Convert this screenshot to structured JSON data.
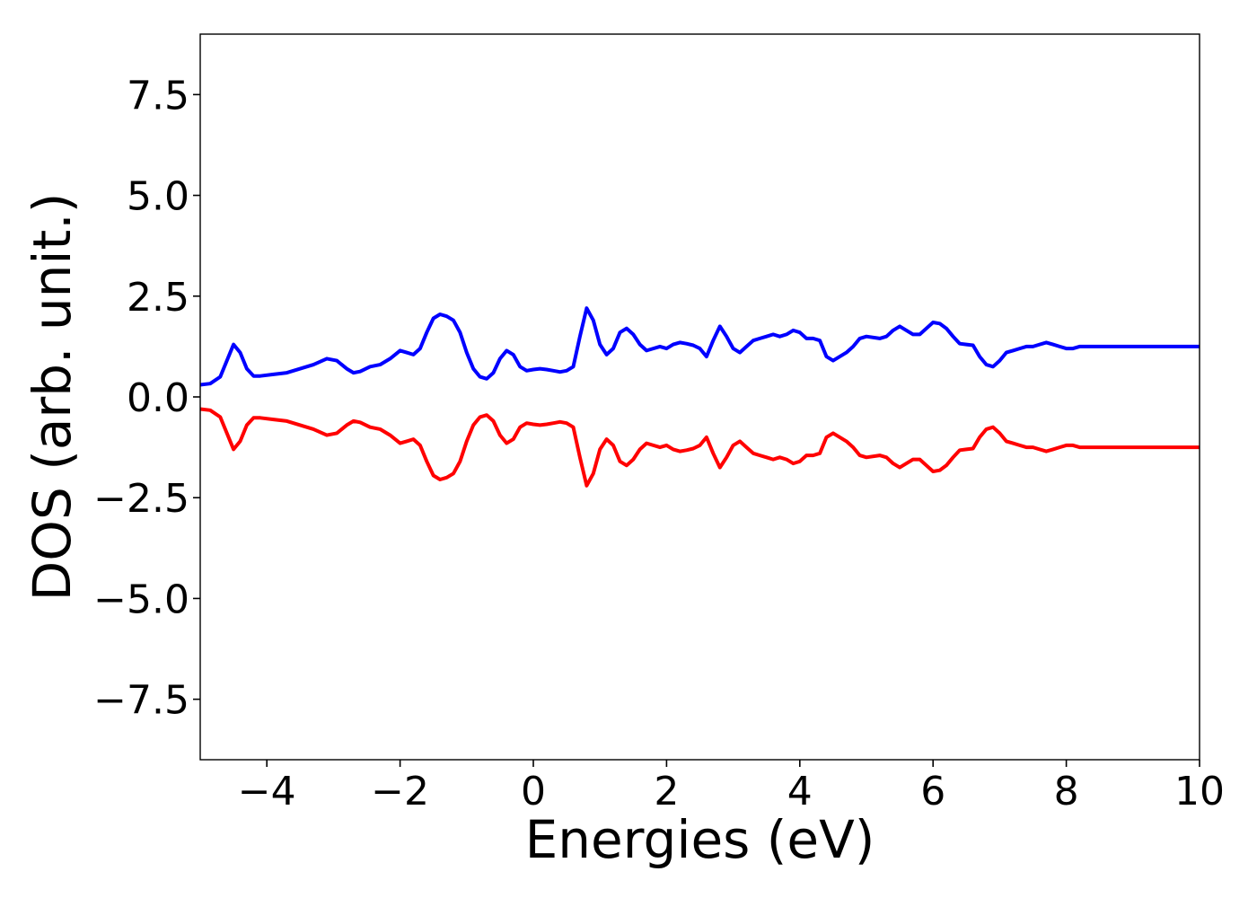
{
  "chart_data": {
    "type": "line",
    "xlabel": "Energies (eV)",
    "ylabel": "DOS (arb. unit.)",
    "xlim": [
      -5,
      10
    ],
    "ylim": [
      -9.0,
      9.0
    ],
    "grid": false,
    "x_ticks": [
      -4,
      -2,
      0,
      2,
      4,
      6,
      8,
      10
    ],
    "x_tick_labels": [
      "−4",
      "−2",
      "0",
      "2",
      "4",
      "6",
      "8",
      "10"
    ],
    "y_ticks": [
      7.5,
      5.0,
      2.5,
      0.0,
      -2.5,
      -5.0,
      -7.5
    ],
    "y_tick_labels": [
      "7.5",
      "5.0",
      "2.5",
      "0.0",
      "−2.5",
      "−5.0",
      "−7.5"
    ],
    "series": [
      {
        "color": "#0000ff",
        "x": [
          -5.0,
          -4.85,
          -4.7,
          -4.6,
          -4.5,
          -4.4,
          -4.3,
          -4.2,
          -4.1,
          -3.9,
          -3.7,
          -3.5,
          -3.3,
          -3.1,
          -2.95,
          -2.8,
          -2.7,
          -2.6,
          -2.45,
          -2.3,
          -2.15,
          -2.0,
          -1.9,
          -1.8,
          -1.7,
          -1.6,
          -1.5,
          -1.4,
          -1.3,
          -1.2,
          -1.1,
          -1.0,
          -0.9,
          -0.8,
          -0.7,
          -0.6,
          -0.5,
          -0.4,
          -0.3,
          -0.2,
          -0.1,
          0.0,
          0.1,
          0.2,
          0.3,
          0.4,
          0.5,
          0.6,
          0.7,
          0.8,
          0.9,
          1.0,
          1.1,
          1.2,
          1.3,
          1.4,
          1.5,
          1.6,
          1.7,
          1.8,
          1.9,
          2.0,
          2.1,
          2.2,
          2.3,
          2.4,
          2.5,
          2.6,
          2.7,
          2.8,
          2.9,
          3.0,
          3.1,
          3.2,
          3.3,
          3.4,
          3.5,
          3.6,
          3.7,
          3.8,
          3.9,
          4.0,
          4.1,
          4.2,
          4.3,
          4.4,
          4.5,
          4.6,
          4.7,
          4.8,
          4.9,
          5.0,
          5.2,
          5.3,
          5.4,
          5.5,
          5.6,
          5.7,
          5.8,
          5.9,
          6.0,
          6.1,
          6.2,
          6.3,
          6.4,
          6.5,
          6.6,
          6.7,
          6.8,
          6.9,
          7.0,
          7.1,
          7.2,
          7.3,
          7.4,
          7.5,
          7.6,
          7.7,
          7.8,
          7.9,
          8.0,
          8.1,
          8.2,
          8.3,
          8.4,
          8.5,
          8.6,
          8.7,
          8.8,
          8.9,
          9.0,
          9.1,
          9.2,
          9.3,
          9.4,
          9.5,
          9.6,
          9.7,
          9.8,
          9.9,
          10.0
        ],
        "values": [
          0.3,
          0.33,
          0.5,
          0.9,
          1.3,
          1.1,
          0.7,
          0.52,
          0.52,
          0.56,
          0.6,
          0.7,
          0.8,
          0.95,
          0.9,
          0.7,
          0.6,
          0.63,
          0.75,
          0.8,
          0.95,
          1.15,
          1.1,
          1.05,
          1.2,
          1.6,
          1.95,
          2.05,
          2.0,
          1.9,
          1.6,
          1.1,
          0.7,
          0.5,
          0.45,
          0.6,
          0.95,
          1.15,
          1.05,
          0.75,
          0.65,
          0.68,
          0.7,
          0.68,
          0.65,
          0.62,
          0.65,
          0.75,
          1.5,
          2.2,
          1.9,
          1.3,
          1.05,
          1.2,
          1.6,
          1.7,
          1.55,
          1.3,
          1.15,
          1.2,
          1.25,
          1.2,
          1.3,
          1.35,
          1.32,
          1.28,
          1.2,
          1.0,
          1.4,
          1.75,
          1.5,
          1.2,
          1.1,
          1.25,
          1.4,
          1.45,
          1.5,
          1.55,
          1.5,
          1.55,
          1.65,
          1.6,
          1.45,
          1.45,
          1.4,
          1.0,
          0.9,
          1.0,
          1.1,
          1.25,
          1.45,
          1.5,
          1.45,
          1.5,
          1.65,
          1.75,
          1.65,
          1.55,
          1.55,
          1.7,
          1.85,
          1.82,
          1.7,
          1.5,
          1.32,
          1.3,
          1.28,
          1.0,
          0.8,
          0.75,
          0.9,
          1.1,
          1.15,
          1.2,
          1.25,
          1.25,
          1.3,
          1.35,
          1.3,
          1.25,
          1.2,
          1.2,
          1.25,
          1.25,
          1.25,
          1.25,
          1.25,
          1.25,
          1.25,
          1.25,
          1.25,
          1.25,
          1.25,
          1.25,
          1.25,
          1.25,
          1.25,
          1.25,
          1.25,
          1.25,
          1.25
        ]
      },
      {
        "color": "#ff0000",
        "x": [
          -5.0,
          -4.85,
          -4.7,
          -4.6,
          -4.5,
          -4.4,
          -4.3,
          -4.2,
          -4.1,
          -3.9,
          -3.7,
          -3.5,
          -3.3,
          -3.1,
          -2.95,
          -2.8,
          -2.7,
          -2.6,
          -2.45,
          -2.3,
          -2.15,
          -2.0,
          -1.9,
          -1.8,
          -1.7,
          -1.6,
          -1.5,
          -1.4,
          -1.3,
          -1.2,
          -1.1,
          -1.0,
          -0.9,
          -0.8,
          -0.7,
          -0.6,
          -0.5,
          -0.4,
          -0.3,
          -0.2,
          -0.1,
          0.0,
          0.1,
          0.2,
          0.3,
          0.4,
          0.5,
          0.6,
          0.7,
          0.8,
          0.9,
          1.0,
          1.1,
          1.2,
          1.3,
          1.4,
          1.5,
          1.6,
          1.7,
          1.8,
          1.9,
          2.0,
          2.1,
          2.2,
          2.3,
          2.4,
          2.5,
          2.6,
          2.7,
          2.8,
          2.9,
          3.0,
          3.1,
          3.2,
          3.3,
          3.4,
          3.5,
          3.6,
          3.7,
          3.8,
          3.9,
          4.0,
          4.1,
          4.2,
          4.3,
          4.4,
          4.5,
          4.6,
          4.7,
          4.8,
          4.9,
          5.0,
          5.2,
          5.3,
          5.4,
          5.5,
          5.6,
          5.7,
          5.8,
          5.9,
          6.0,
          6.1,
          6.2,
          6.3,
          6.4,
          6.5,
          6.6,
          6.7,
          6.8,
          6.9,
          7.0,
          7.1,
          7.2,
          7.3,
          7.4,
          7.5,
          7.6,
          7.7,
          7.8,
          7.9,
          8.0,
          8.1,
          8.2,
          8.3,
          8.4,
          8.5,
          8.6,
          8.7,
          8.8,
          8.9,
          9.0,
          9.1,
          9.2,
          9.3,
          9.4,
          9.5,
          9.6,
          9.7,
          9.8,
          9.9,
          10.0
        ],
        "values": [
          -0.3,
          -0.33,
          -0.5,
          -0.9,
          -1.3,
          -1.1,
          -0.7,
          -0.52,
          -0.52,
          -0.56,
          -0.6,
          -0.7,
          -0.8,
          -0.95,
          -0.9,
          -0.7,
          -0.6,
          -0.63,
          -0.75,
          -0.8,
          -0.95,
          -1.15,
          -1.1,
          -1.05,
          -1.2,
          -1.6,
          -1.95,
          -2.05,
          -2.0,
          -1.9,
          -1.6,
          -1.1,
          -0.7,
          -0.5,
          -0.45,
          -0.6,
          -0.95,
          -1.15,
          -1.05,
          -0.75,
          -0.65,
          -0.68,
          -0.7,
          -0.68,
          -0.65,
          -0.62,
          -0.65,
          -0.75,
          -1.5,
          -2.2,
          -1.9,
          -1.3,
          -1.05,
          -1.2,
          -1.6,
          -1.7,
          -1.55,
          -1.3,
          -1.15,
          -1.2,
          -1.25,
          -1.2,
          -1.3,
          -1.35,
          -1.32,
          -1.28,
          -1.2,
          -1.0,
          -1.4,
          -1.75,
          -1.5,
          -1.2,
          -1.1,
          -1.25,
          -1.4,
          -1.45,
          -1.5,
          -1.55,
          -1.5,
          -1.55,
          -1.65,
          -1.6,
          -1.45,
          -1.45,
          -1.4,
          -1.0,
          -0.9,
          -1.0,
          -1.1,
          -1.25,
          -1.45,
          -1.5,
          -1.45,
          -1.5,
          -1.65,
          -1.75,
          -1.65,
          -1.55,
          -1.55,
          -1.7,
          -1.85,
          -1.82,
          -1.7,
          -1.5,
          -1.32,
          -1.3,
          -1.28,
          -1.0,
          -0.8,
          -0.75,
          -0.9,
          -1.1,
          -1.15,
          -1.2,
          -1.25,
          -1.25,
          -1.3,
          -1.35,
          -1.3,
          -1.25,
          -1.2,
          -1.2,
          -1.25,
          -1.25,
          -1.25,
          -1.25,
          -1.25,
          -1.25,
          -1.25,
          -1.25,
          -1.25,
          -1.25,
          -1.25,
          -1.25,
          -1.25,
          -1.25,
          -1.25,
          -1.25,
          -1.25,
          -1.25,
          -1.25
        ]
      }
    ]
  }
}
